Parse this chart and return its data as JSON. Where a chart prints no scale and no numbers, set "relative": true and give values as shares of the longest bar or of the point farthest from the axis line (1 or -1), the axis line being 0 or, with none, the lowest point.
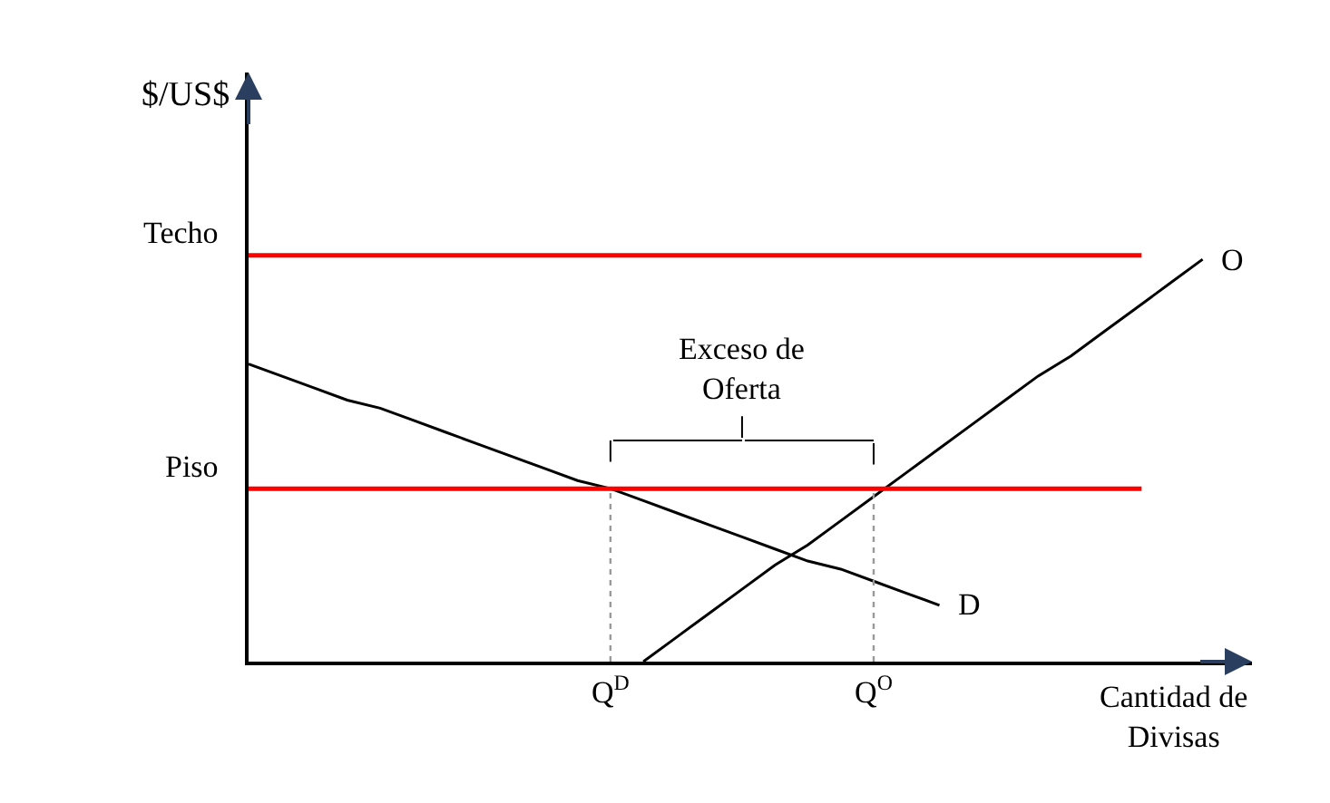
{
  "chart_data": {
    "type": "line",
    "relative": true,
    "xlabel": "Cantidad de Divisas",
    "ylabel": "$/US$",
    "categories": [
      null,
      null,
      null,
      null,
      null,
      null,
      null,
      null,
      null,
      null,
      null,
      "Q$^{D}$",
      null,
      null,
      null,
      null,
      null,
      null,
      null,
      "Q$^{O}$",
      null,
      null,
      null,
      null,
      null,
      null,
      null,
      null,
      null,
      null,
      null
    ],
    "tick_labels": "x",
    "marker": "none",
    "line_style": "solid",
    "series": [
      {
        "name": "D",
        "color": "#000000",
        "values": [
          0.74,
          0.71,
          0.68,
          0.65,
          0.63,
          0.6,
          0.57,
          0.54,
          0.51,
          0.48,
          0.45,
          0.43,
          0.4,
          0.37,
          0.34,
          0.31,
          0.28,
          0.25,
          0.23,
          0.2,
          0.17,
          0.14,
          null,
          null,
          null,
          null,
          null,
          null,
          null,
          null,
          null
        ]
      },
      {
        "name": "O",
        "color": "#000000",
        "values": [
          null,
          null,
          null,
          null,
          null,
          null,
          null,
          null,
          null,
          null,
          null,
          null,
          0,
          0.06,
          0.12,
          0.18,
          0.24,
          0.29,
          0.35,
          0.41,
          0.47,
          0.53,
          0.59,
          0.65,
          0.71,
          0.76,
          0.82,
          0.88,
          0.94,
          1,
          null
        ]
      }
    ],
    "ref_lines": [
      {
        "axis": "y",
        "value": 1.01,
        "label": "Techo",
        "color": "#ff0000"
      },
      {
        "axis": "y",
        "value": 0.43,
        "label": "Piso",
        "color": "#ff0000"
      },
      {
        "axis": "x",
        "value": "Q$^{D}$",
        "color": "#999999",
        "line_style": "dotted"
      },
      {
        "axis": "x",
        "value": "Q$^{O}$",
        "color": "#999999",
        "line_style": "dotted"
      }
    ],
    "annotations": [
      "Exceso de\nOferta"
    ]
  }
}
